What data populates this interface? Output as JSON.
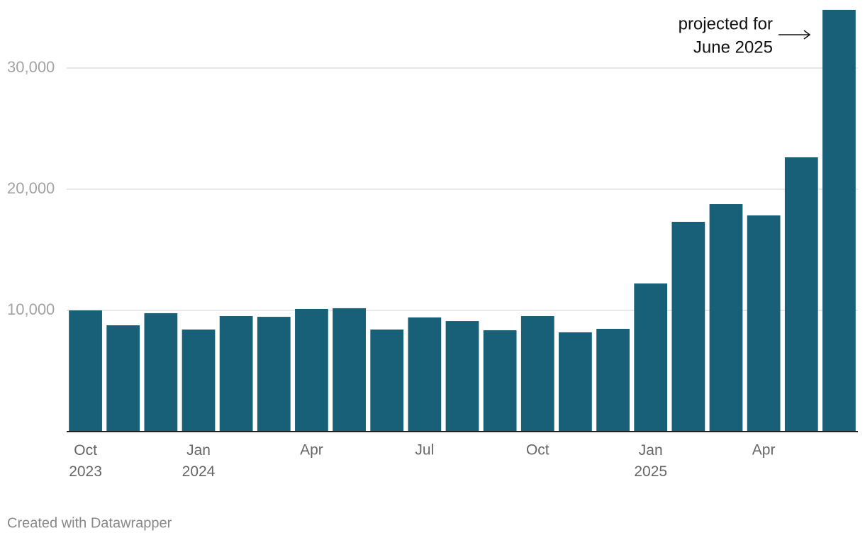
{
  "chart_data": {
    "type": "bar",
    "categories": [
      "Oct 2023",
      null,
      null,
      "Jan 2024",
      null,
      null,
      "Apr",
      null,
      null,
      "Jul",
      null,
      null,
      "Oct",
      null,
      null,
      "Jan 2025",
      null,
      null,
      "Apr",
      null,
      null
    ],
    "values": [
      10000,
      8770,
      9770,
      8420,
      9530,
      9470,
      10120,
      10180,
      8420,
      9420,
      9120,
      8360,
      9530,
      8190,
      8480,
      12220,
      17310,
      18770,
      17840,
      22630,
      34800
    ],
    "color": "#176078",
    "ylim": [
      0,
      35000
    ],
    "yticks": [
      {
        "value": 10000,
        "label": "10,000"
      },
      {
        "value": 20000,
        "label": "20,000"
      },
      {
        "value": 30000,
        "label": "30,000"
      }
    ],
    "grid": true,
    "annotation": [
      "projected for",
      "June 2025"
    ],
    "footer": "Created with Datawrapper"
  }
}
